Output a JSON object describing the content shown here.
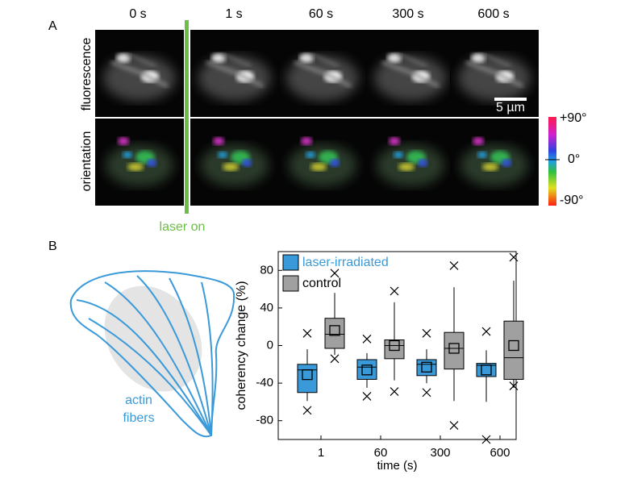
{
  "panel_a": {
    "label": "A",
    "time_labels": [
      "0 s",
      "1 s",
      "60 s",
      "300 s",
      "600 s"
    ],
    "rows": [
      "fluorescence",
      "orientation"
    ],
    "scale_bar": "5 µm",
    "colorbar_ticks": [
      "+90°",
      "0°",
      "-90°"
    ],
    "laser_label": "laser on"
  },
  "panel_b": {
    "label": "B",
    "drawing_labels": [
      "actin",
      "fibers"
    ]
  },
  "chart_data": {
    "type": "box",
    "xlabel": "time (s)",
    "ylabel": "coherency change (%)",
    "categories": [
      "1",
      "60",
      "300",
      "600"
    ],
    "ylim": [
      -100,
      100
    ],
    "yticks": [
      -80,
      -40,
      0,
      40,
      80
    ],
    "series": [
      {
        "name": "laser-irradiated",
        "color": "#3a9ad9",
        "text_color": "#3a9ad9",
        "whisker_low": [
          -59,
          -45,
          -40,
          -60
        ],
        "q1": [
          -50,
          -36,
          -32,
          -33
        ],
        "median": [
          -26,
          -23,
          -20,
          -21
        ],
        "q3": [
          -20,
          -15,
          -15,
          -19
        ],
        "whisker_high": [
          -4,
          -8,
          -4,
          -5
        ],
        "mean": [
          -31,
          -26,
          -23,
          -26
        ],
        "low_mark": [
          -69,
          -54,
          -50,
          -100
        ],
        "high_mark": [
          13,
          7,
          13,
          15
        ]
      },
      {
        "name": "control",
        "color": "#a0a0a0",
        "text_color": "#000000",
        "whisker_low": [
          -10,
          -37,
          -59,
          -45
        ],
        "q1": [
          -3,
          -14,
          -25,
          -36
        ],
        "median": [
          12,
          0,
          -3,
          -13
        ],
        "q3": [
          29,
          6,
          14,
          26
        ],
        "whisker_high": [
          56,
          46,
          62,
          69
        ],
        "mean": [
          16,
          0,
          -3,
          0
        ],
        "low_mark": [
          -14,
          -49,
          -85,
          -43
        ],
        "high_mark": [
          77,
          58,
          85,
          94
        ]
      }
    ]
  }
}
